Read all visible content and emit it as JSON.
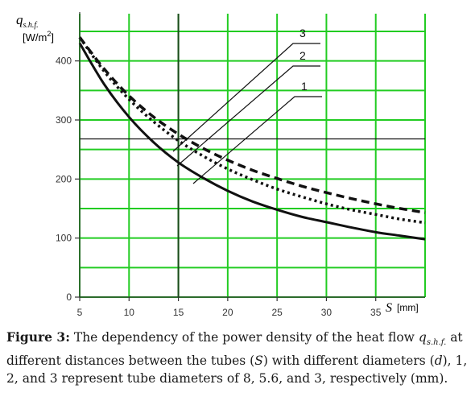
{
  "chart_data": {
    "type": "line",
    "ylabel_symbol": "q",
    "ylabel_subscript": "s.h.f.",
    "ylabel_unit_prefix": "[W/m",
    "ylabel_unit_exp": "2",
    "ylabel_unit_suffix": "]",
    "xlabel_symbol": "S",
    "xlabel_unit": "[mm]",
    "xlim": [
      5,
      40
    ],
    "ylim": [
      0,
      480
    ],
    "x_ticks": [
      5,
      10,
      15,
      20,
      25,
      30,
      35
    ],
    "y_ticks": [
      0,
      100,
      200,
      300,
      400
    ],
    "grid": true,
    "grid_color": "#22cc22",
    "reference_lines": {
      "vertical_x": 15,
      "horizontal_y": 268
    },
    "series": [
      {
        "name": "1",
        "style": "solid",
        "x": [
          5,
          7.5,
          10,
          12.5,
          15,
          17.5,
          20,
          22.5,
          25,
          27.5,
          30,
          32.5,
          35,
          37.5,
          40
        ],
        "values": [
          430,
          360,
          305,
          262,
          228,
          202,
          180,
          162,
          148,
          136,
          127,
          118,
          110,
          104,
          98
        ]
      },
      {
        "name": "2",
        "style": "dotted",
        "x": [
          5,
          7.5,
          10,
          12.5,
          15,
          17.5,
          20,
          22.5,
          25,
          27.5,
          30,
          32.5,
          35,
          37.5,
          40
        ],
        "values": [
          440,
          382,
          335,
          297,
          265,
          239,
          217,
          199,
          183,
          170,
          158,
          148,
          140,
          132,
          126
        ]
      },
      {
        "name": "3",
        "style": "dashed",
        "x": [
          5,
          7.5,
          10,
          12.5,
          15,
          17.5,
          20,
          22.5,
          25,
          27.5,
          30,
          32.5,
          35,
          37.5,
          40
        ],
        "values": [
          440,
          386,
          341,
          305,
          276,
          252,
          232,
          215,
          201,
          188,
          177,
          167,
          158,
          150,
          143
        ]
      }
    ]
  },
  "caption": {
    "lead": "Figure 3:",
    "text_1": " The dependency of the power density of the heat flow ",
    "q_symbol": "q",
    "q_sub": "s.h.f.",
    "text_2": " at different distances between the tubes (",
    "s_symbol": "S",
    "text_3": ") with different diameters (",
    "d_symbol": "d",
    "text_4": "), 1, 2, and 3 represent tube diameters of 8, 5.6, and 3, respectively (mm)."
  }
}
